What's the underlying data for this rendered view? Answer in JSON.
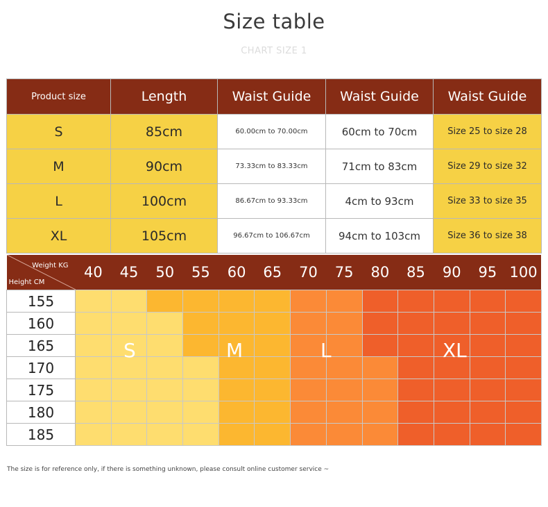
{
  "title": "Size table",
  "subtitle": "CHART SIZE 1",
  "size_table": {
    "headers": [
      "Product size",
      "Length",
      "Waist Guide",
      "Waist Guide",
      "Waist Guide"
    ],
    "rows": [
      [
        "S",
        "85cm",
        "60.00cm to 70.00cm",
        "60cm to 70cm",
        "Size 25 to size 28"
      ],
      [
        "M",
        "90cm",
        "73.33cm to 83.33cm",
        "71cm to 83cm",
        "Size 29 to size 32"
      ],
      [
        "L",
        "100cm",
        "86.67cm to 93.33cm",
        "4cm to 93cm",
        "Size 33 to size 35"
      ],
      [
        "XL",
        "105cm",
        "96.67cm to 106.67cm",
        "94cm to 103cm",
        "Size 36 to size 38"
      ]
    ]
  },
  "grid": {
    "weight_label": "Weight KG",
    "height_label": "Height CM",
    "weights": [
      "40",
      "45",
      "50",
      "55",
      "60",
      "65",
      "70",
      "75",
      "80",
      "85",
      "90",
      "95",
      "100"
    ],
    "heights": [
      "155",
      "160",
      "165",
      "170",
      "175",
      "180",
      "185"
    ],
    "zones": [
      "S",
      "M",
      "L",
      "XL"
    ],
    "zone_colors": [
      "#fedd6f",
      "#fcb730",
      "#fb8a37",
      "#ef5f2a"
    ],
    "cells": [
      [
        1,
        1,
        2,
        2,
        2,
        2,
        3,
        3,
        4,
        4,
        4,
        4,
        4
      ],
      [
        1,
        1,
        1,
        2,
        2,
        2,
        3,
        3,
        4,
        4,
        4,
        4,
        4
      ],
      [
        1,
        1,
        1,
        2,
        2,
        2,
        3,
        3,
        4,
        4,
        4,
        4,
        4
      ],
      [
        1,
        1,
        1,
        1,
        2,
        2,
        3,
        3,
        3,
        4,
        4,
        4,
        4
      ],
      [
        1,
        1,
        1,
        1,
        2,
        2,
        3,
        3,
        3,
        4,
        4,
        4,
        4
      ],
      [
        1,
        1,
        1,
        1,
        2,
        2,
        3,
        3,
        3,
        4,
        4,
        4,
        4
      ],
      [
        1,
        1,
        1,
        1,
        2,
        2,
        3,
        3,
        3,
        4,
        4,
        4,
        4
      ]
    ]
  },
  "footnote": "The size is for reference only, if there is something unknown, please consult online customer service ~"
}
